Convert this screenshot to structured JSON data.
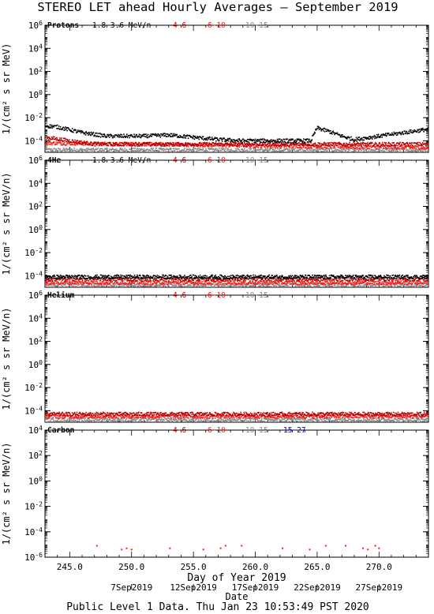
{
  "title": "STEREO LET ahead Hourly Averages – September 2019",
  "footer": "Public Level 1 Data. Thu Jan 23 10:53:49 PST 2020",
  "x_axis": {
    "label": "Day of Year 2019",
    "range": [
      243.0,
      274.0
    ],
    "ticks": [
      "245.0",
      "250.0",
      "255.0",
      "260.0",
      "265.0",
      "270.0"
    ],
    "tick_values": [
      245,
      250,
      255,
      260,
      265,
      270
    ],
    "date_label": "Date",
    "dates": [
      {
        "label": "7Sep2019",
        "day": 250
      },
      {
        "label": "12Sep2019",
        "day": 255
      },
      {
        "label": "17Sep2019",
        "day": 260
      },
      {
        "label": "22Sep2019",
        "day": 265
      },
      {
        "label": "27Sep2019",
        "day": 270
      }
    ]
  },
  "colors": {
    "s1": "#000000",
    "s2": "#b00000",
    "s3": "#ff1a1a",
    "s4": "#888888",
    "s5": "#0000cc"
  },
  "chart_data": [
    {
      "type": "scatter",
      "panel_label": "Protons",
      "ylabel": "1/(cm² s sr MeV)",
      "yscale": "log",
      "ylim_exp": [
        -5,
        6
      ],
      "ytick_exps": [
        -4,
        -2,
        0,
        2,
        4,
        6
      ],
      "legend": [
        "1.8-3.6 MeV/n",
        "4-6",
        "6-10",
        "10-15"
      ],
      "series": [
        {
          "name": "1.8-3.6 MeV/n",
          "color": "#000000",
          "profile": [
            [
              243,
              -2.7
            ],
            [
              244,
              -2.8
            ],
            [
              246,
              -3.3
            ],
            [
              248,
              -3.6
            ],
            [
              251,
              -3.6
            ],
            [
              253,
              -3.5
            ],
            [
              255,
              -3.7
            ],
            [
              257,
              -3.9
            ],
            [
              259,
              -4.0
            ],
            [
              262,
              -4.0
            ],
            [
              264.5,
              -4.0
            ],
            [
              265.0,
              -2.9
            ],
            [
              266,
              -3.2
            ],
            [
              267,
              -3.6
            ],
            [
              268,
              -3.9
            ],
            [
              270,
              -3.6
            ],
            [
              272,
              -3.3
            ],
            [
              274,
              -3.0
            ]
          ]
        },
        {
          "name": "4-6",
          "color": "#b00000",
          "profile": [
            [
              243,
              -3.7
            ],
            [
              245,
              -4.0
            ],
            [
              247,
              -4.3
            ],
            [
              274,
              -4.3
            ]
          ]
        },
        {
          "name": "6-10",
          "color": "#ff1a1a",
          "profile": [
            [
              243,
              -4.2
            ],
            [
              274,
              -4.6
            ]
          ]
        },
        {
          "name": "10-15",
          "color": "#888888",
          "profile": [
            [
              243,
              -4.8
            ],
            [
              274,
              -4.8
            ]
          ]
        }
      ]
    },
    {
      "type": "scatter",
      "panel_label": "4He",
      "ylabel": "1/(cm² s sr MeV/n)",
      "yscale": "log",
      "ylim_exp": [
        -5,
        6
      ],
      "ytick_exps": [
        -4,
        -2,
        0,
        2,
        4,
        6
      ],
      "legend": [
        "1.8-3.6 MeV/n",
        "4-6",
        "6-10",
        "10-15"
      ],
      "series": [
        {
          "name": "1.8-3.6 MeV/n",
          "color": "#000000",
          "profile": [
            [
              243,
              -4.1
            ],
            [
              274,
              -4.1
            ]
          ]
        },
        {
          "name": "4-6",
          "color": "#b00000",
          "profile": [
            [
              243,
              -4.3
            ],
            [
              274,
              -4.3
            ]
          ]
        },
        {
          "name": "6-10",
          "color": "#ff1a1a",
          "profile": [
            [
              243,
              -4.6
            ],
            [
              274,
              -4.6
            ]
          ]
        },
        {
          "name": "10-15",
          "color": "#888888",
          "profile": [
            [
              243,
              -4.8
            ],
            [
              274,
              -4.8
            ]
          ]
        }
      ]
    },
    {
      "type": "scatter",
      "panel_label": "Helium",
      "ylabel": "1/(cm² s sr MeV/n)",
      "yscale": "log",
      "ylim_exp": [
        -5,
        6
      ],
      "ytick_exps": [
        -4,
        -2,
        0,
        2,
        4,
        6
      ],
      "legend": [
        "4-6",
        "6-10",
        "10-15"
      ],
      "series": [
        {
          "name": "4-6",
          "color": "#b00000",
          "profile": [
            [
              243,
              -4.3
            ],
            [
              274,
              -4.3
            ]
          ]
        },
        {
          "name": "6-10",
          "color": "#ff1a1a",
          "profile": [
            [
              243,
              -4.5
            ],
            [
              274,
              -4.5
            ]
          ]
        },
        {
          "name": "10-15",
          "color": "#888888",
          "profile": [
            [
              243,
              -4.8
            ],
            [
              274,
              -4.8
            ]
          ]
        }
      ]
    },
    {
      "type": "scatter",
      "panel_label": "Carbon",
      "ylabel": "1/(cm² s sr MeV/n)",
      "yscale": "log",
      "ylim_exp": [
        -6,
        4
      ],
      "ytick_exps": [
        -6,
        -4,
        -2,
        0,
        2,
        4
      ],
      "legend": [
        "4-6",
        "6-10",
        "10-15",
        "15-27"
      ],
      "series": [
        {
          "name": "6-10",
          "color": "#ff1a1a",
          "points": [
            [
              247.2,
              -5.1
            ],
            [
              249.2,
              -5.4
            ],
            [
              249.6,
              -5.3
            ],
            [
              250.0,
              -5.4
            ],
            [
              253.1,
              -5.3
            ],
            [
              255.8,
              -5.4
            ],
            [
              257.2,
              -5.3
            ],
            [
              257.6,
              -5.1
            ],
            [
              258.9,
              -5.1
            ],
            [
              262.2,
              -5.3
            ],
            [
              264.4,
              -5.4
            ],
            [
              265.7,
              -5.1
            ],
            [
              267.3,
              -5.1
            ],
            [
              268.7,
              -5.3
            ],
            [
              269.1,
              -5.4
            ],
            [
              269.7,
              -5.1
            ],
            [
              270.0,
              -5.3
            ]
          ]
        }
      ]
    }
  ]
}
